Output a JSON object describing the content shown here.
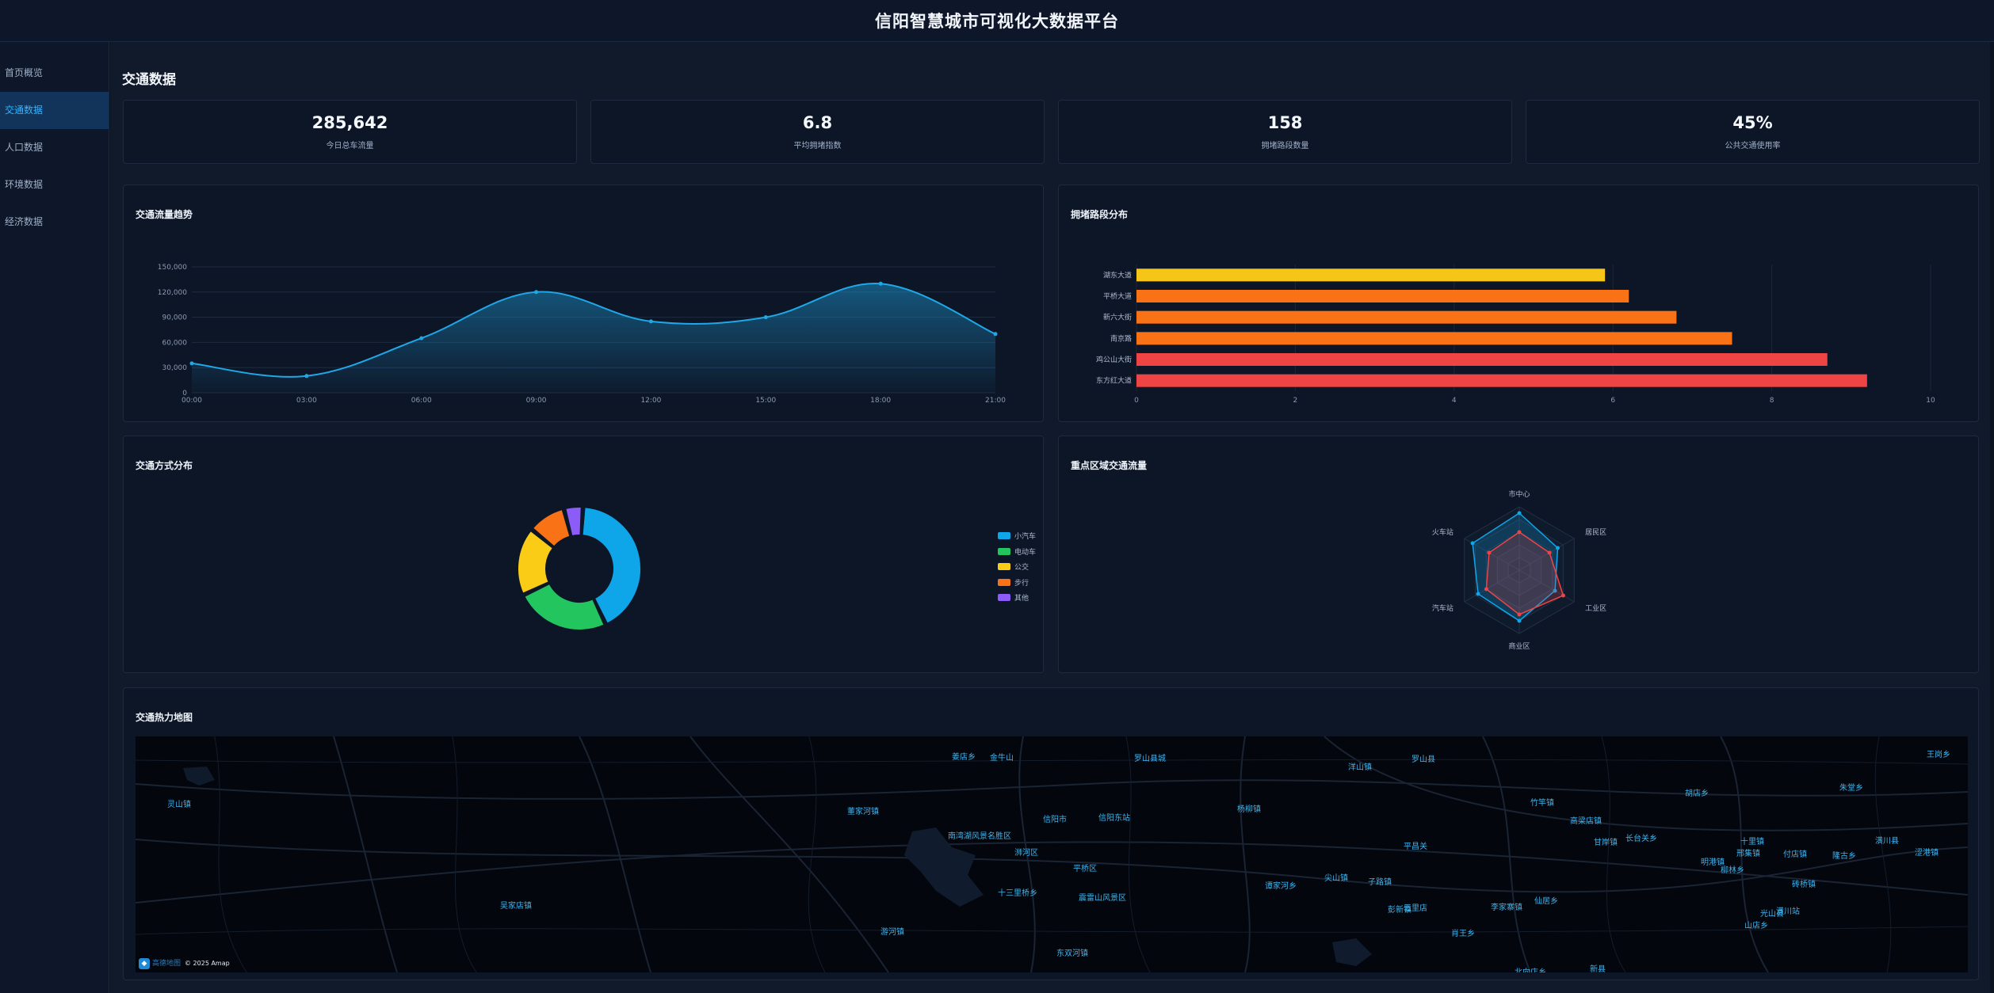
{
  "header": {
    "title": "信阳智慧城市可视化大数据平台"
  },
  "sidebar": {
    "items": [
      {
        "label": "首页概览",
        "active": false
      },
      {
        "label": "交通数据",
        "active": true
      },
      {
        "label": "人口数据",
        "active": false
      },
      {
        "label": "环境数据",
        "active": false
      },
      {
        "label": "经济数据",
        "active": false
      }
    ]
  },
  "main": {
    "page_title": "交通数据",
    "stats": [
      {
        "value": "285,642",
        "label": "今日总车流量"
      },
      {
        "value": "6.8",
        "label": "平均拥堵指数"
      },
      {
        "value": "158",
        "label": "拥堵路段数量"
      },
      {
        "value": "45%",
        "label": "公共交通使用率"
      }
    ],
    "panels": {
      "traffic_trend": "交通流量趋势",
      "congestion": "拥堵路段分布",
      "mode_share": "交通方式分布",
      "key_areas": "重点区域交通流量",
      "heatmap": "交通热力地图"
    },
    "map": {
      "copyright": "© 2025 Amap",
      "logo_text": "高德地图",
      "labels": [
        "罗山县",
        "灵山镇",
        "金牛山",
        "董家河镇",
        "信阳市",
        "信阳东站",
        "南湾湖风景名胜区",
        "浉河区",
        "平桥区",
        "十三里桥乡",
        "震雷山风景区",
        "吴家店镇",
        "游河镇",
        "东双河镇",
        "竹竿镇",
        "胡店乡",
        "洋山镇",
        "杨柳镇",
        "高梁店镇",
        "罗山县城",
        "明港镇",
        "谭家河乡",
        "五里店",
        "李家寨镇",
        "长台关乡",
        "肖王乡",
        "甘岸镇",
        "平昌关",
        "邢集镇",
        "仙居乡",
        "山店乡",
        "新县",
        "光山县",
        "北向店乡",
        "朱堂乡",
        "十里镇",
        "砖桥镇",
        "潢川站",
        "潢川县",
        "隆古乡",
        "付店镇",
        "姜店乡",
        "子路镇",
        "彭新镇",
        "尖山镇",
        "柳林乡",
        "王岗乡",
        "涩港镇"
      ]
    }
  },
  "chart_data": [
    {
      "type": "area",
      "title": "交通流量趋势",
      "x": [
        "00:00",
        "03:00",
        "06:00",
        "09:00",
        "12:00",
        "15:00",
        "18:00",
        "21:00"
      ],
      "values": [
        35000,
        20000,
        65000,
        120000,
        85000,
        90000,
        130000,
        70000
      ],
      "ylim": [
        0,
        150000
      ],
      "yticks": [
        "0",
        "30,000",
        "60,000",
        "90,000",
        "120,000",
        "150,000"
      ],
      "color": "#1fa8e8"
    },
    {
      "type": "bar",
      "orientation": "horizontal",
      "title": "拥堵路段分布",
      "categories": [
        "湖东大道",
        "平桥大道",
        "新六大街",
        "南京路",
        "鸡公山大街",
        "东方红大道"
      ],
      "values": [
        5.9,
        6.2,
        6.8,
        7.5,
        8.7,
        9.2
      ],
      "colors": [
        "#f5c518",
        "#f97316",
        "#f97316",
        "#f97316",
        "#ef4444",
        "#ef4444"
      ],
      "xlim": [
        0,
        10
      ],
      "xticks": [
        "0",
        "2",
        "4",
        "6",
        "8",
        "10"
      ]
    },
    {
      "type": "pie",
      "title": "交通方式分布",
      "donut": true,
      "series": [
        {
          "name": "小汽车",
          "value": 42,
          "color": "#0ea5e9"
        },
        {
          "name": "电动车",
          "value": 25,
          "color": "#22c55e"
        },
        {
          "name": "公交",
          "value": 18,
          "color": "#facc15"
        },
        {
          "name": "步行",
          "value": 10,
          "color": "#f97316"
        },
        {
          "name": "其他",
          "value": 5,
          "color": "#8b5cf6"
        }
      ],
      "legend": "right"
    },
    {
      "type": "radar",
      "title": "重点区域交通流量",
      "indicators": [
        "市中心",
        "居民区",
        "工业区",
        "商业区",
        "汽车站",
        "火车站"
      ],
      "max": 100,
      "series": [
        {
          "values": [
            90,
            70,
            65,
            80,
            75,
            85
          ],
          "color": "#0ea5e9"
        },
        {
          "values": [
            60,
            55,
            80,
            70,
            60,
            55
          ],
          "color": "#ef4444"
        }
      ]
    }
  ]
}
